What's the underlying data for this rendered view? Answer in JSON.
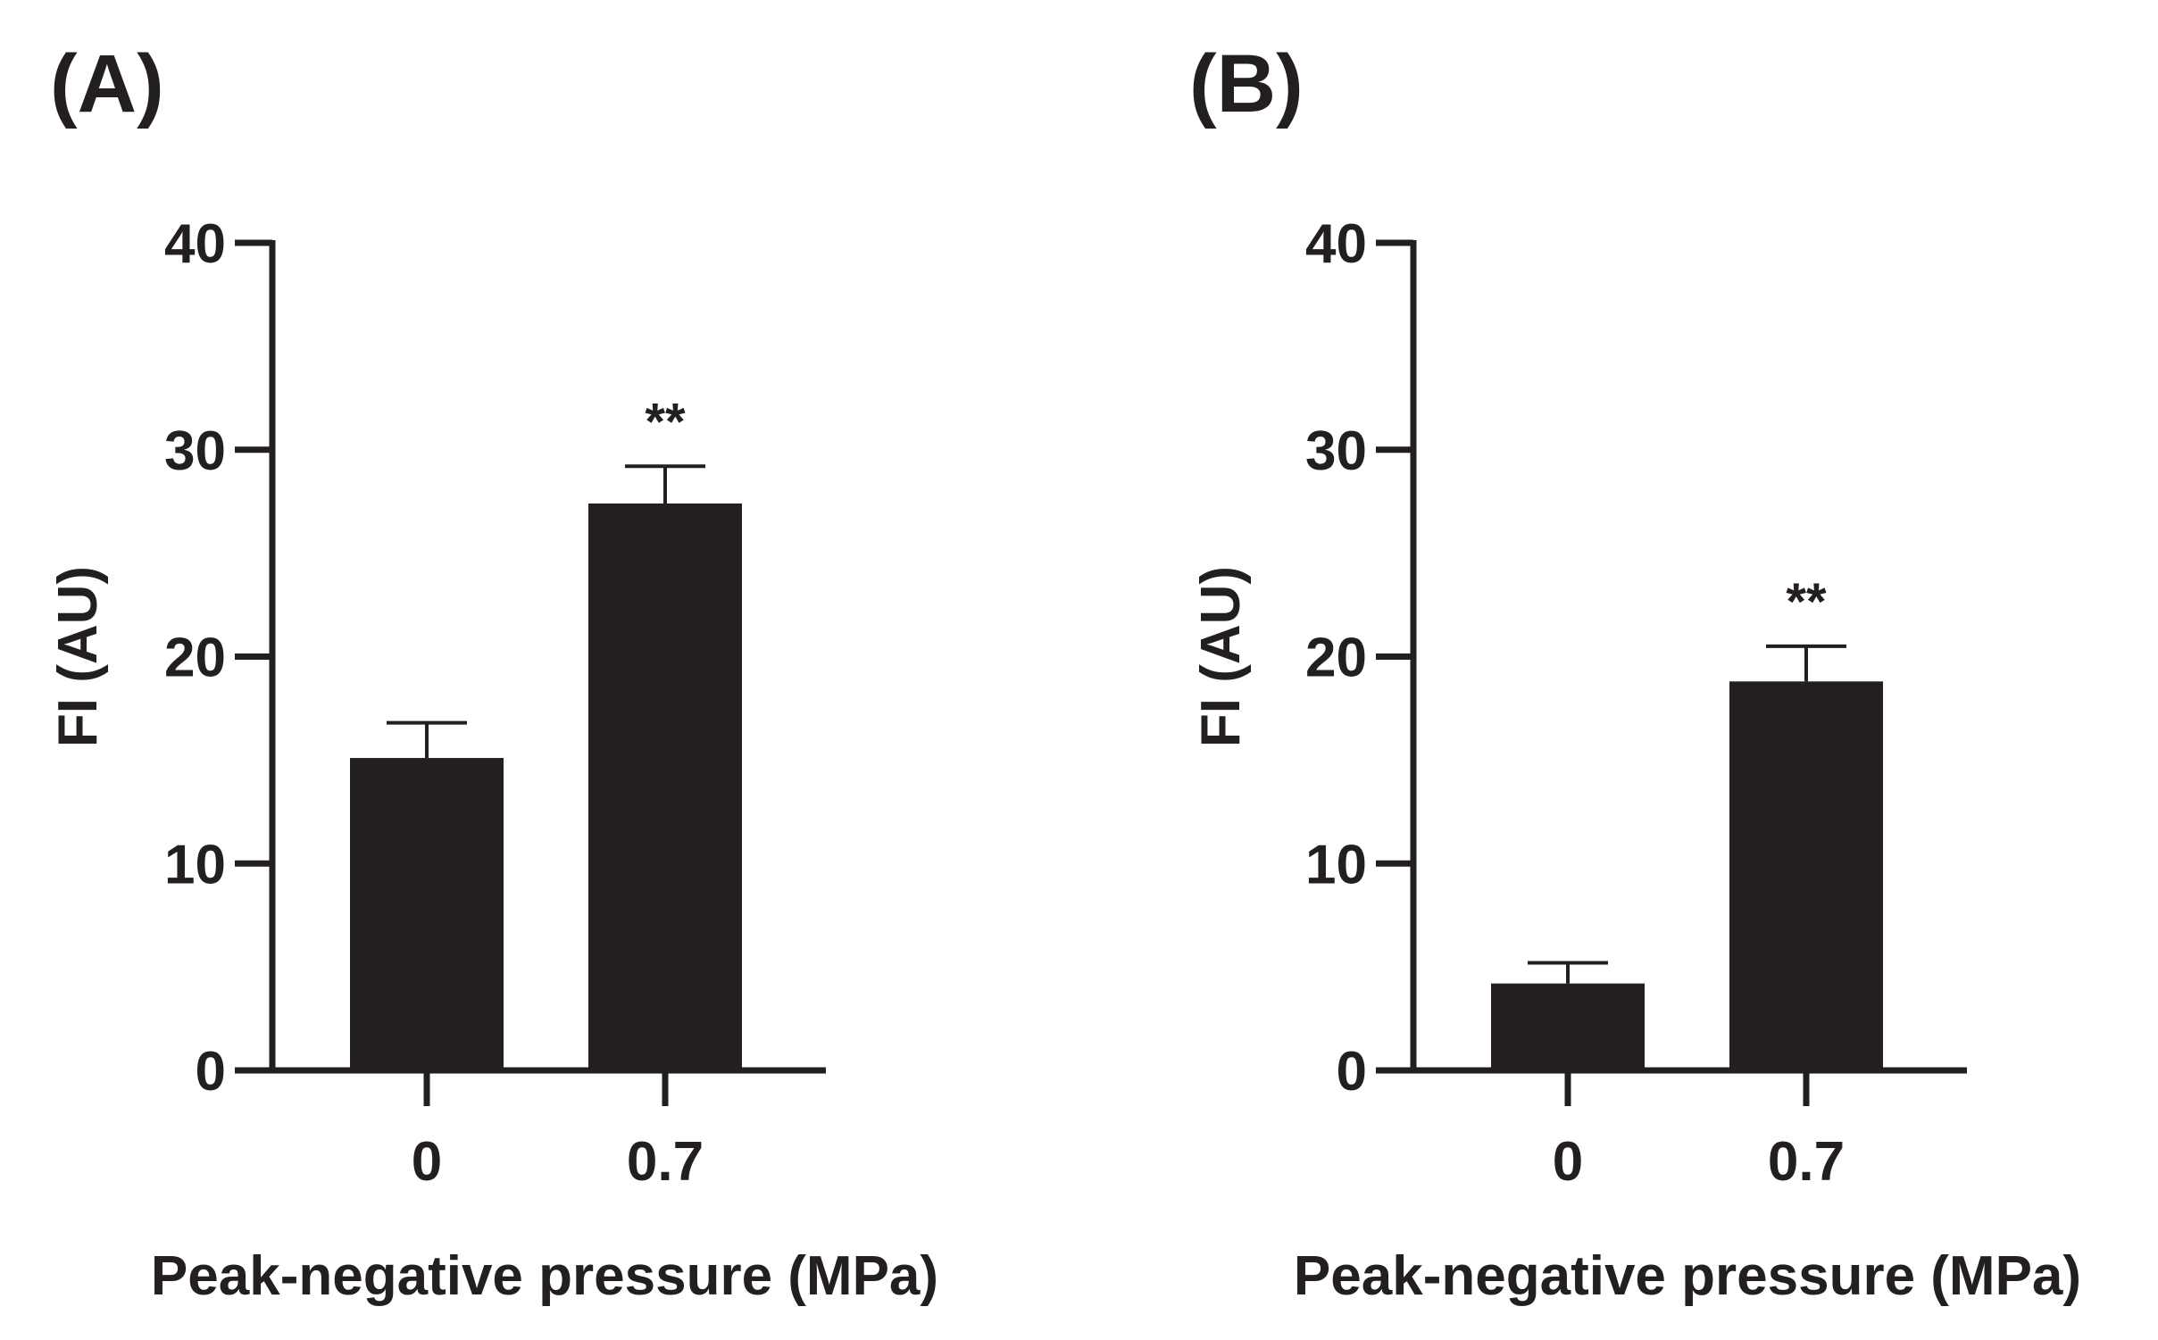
{
  "chart_data": [
    {
      "type": "bar",
      "panel_label": "(A)",
      "categories": [
        "0",
        "0.7"
      ],
      "values": [
        15.1,
        27.4
      ],
      "errors": [
        1.7,
        1.8
      ],
      "annotations": [
        "",
        "**"
      ],
      "xlabel": "Peak-negative pressure (MPa)",
      "ylabel": "FI (AU)",
      "ylim": [
        0,
        40
      ],
      "yticks": [
        "0",
        "10",
        "20",
        "30",
        "40"
      ],
      "bar_color": "#231f20"
    },
    {
      "type": "bar",
      "panel_label": "(B)",
      "categories": [
        "0",
        "0.7"
      ],
      "values": [
        4.2,
        18.8
      ],
      "errors": [
        1.0,
        1.7
      ],
      "annotations": [
        "",
        "**"
      ],
      "xlabel": "Peak-negative pressure (MPa)",
      "ylabel": "FI (AU)",
      "ylim": [
        0,
        40
      ],
      "yticks": [
        "0",
        "10",
        "20",
        "30",
        "40"
      ],
      "bar_color": "#231f20"
    }
  ]
}
